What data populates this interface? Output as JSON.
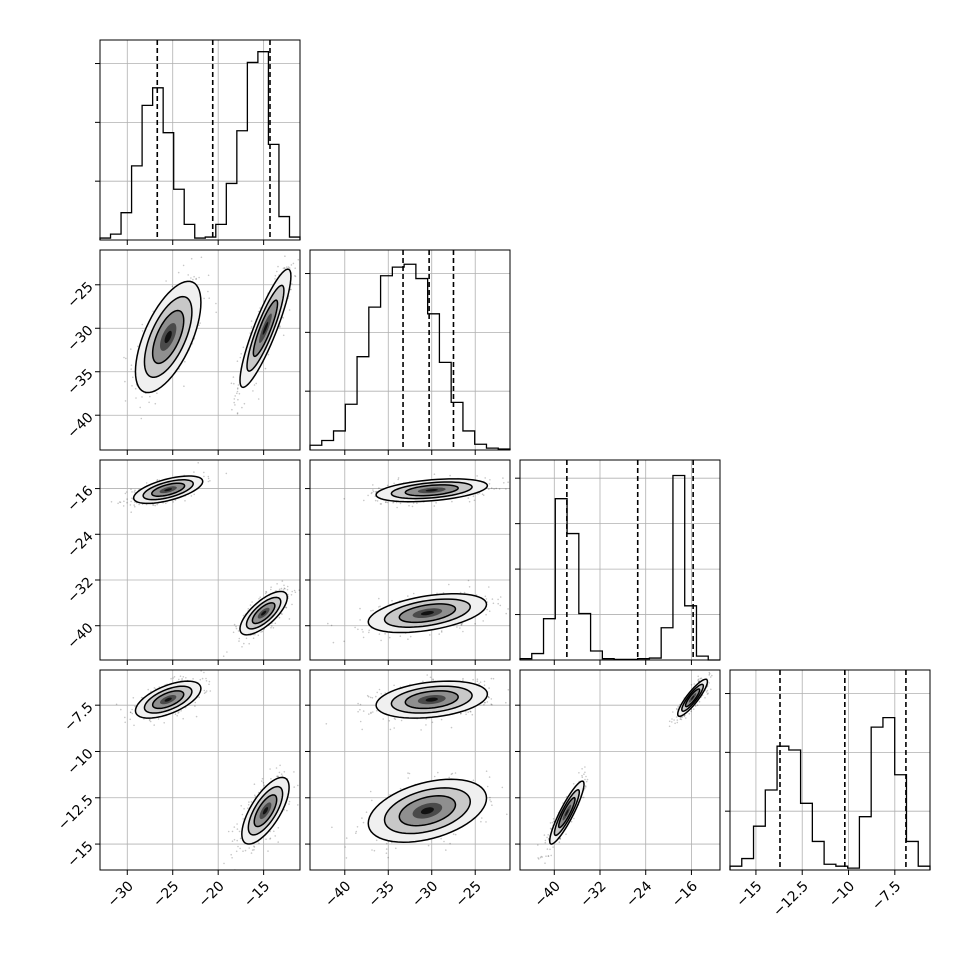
{
  "chart_data": {
    "type": "scatter",
    "title": "",
    "params": [
      {
        "range": [
          -33,
          -11
        ],
        "ticks": [
          -30,
          -25,
          -20,
          -15
        ],
        "quantiles": [
          -26.7,
          -20.6,
          -14.3
        ],
        "hist": [
          0.2,
          0.6,
          2.8,
          7.6,
          13.8,
          15.6,
          11.0,
          5.2,
          1.6,
          0.2,
          0.3,
          1.6,
          5.8,
          11.2,
          18.2,
          19.3,
          9.8,
          2.4,
          0.3
        ],
        "ymax": 20.5,
        "ygrid": 3
      },
      {
        "range": [
          -44,
          -21
        ],
        "ticks": [
          -40,
          -35,
          -30,
          -25
        ],
        "quantiles": [
          -33.3,
          -30.3,
          -27.5
        ],
        "hist": [
          0.5,
          1.0,
          2.0,
          4.8,
          9.8,
          15.0,
          18.3,
          19.2,
          19.5,
          18.0,
          14.3,
          9.2,
          5.0,
          2.0,
          0.6,
          0.2,
          0.1
        ],
        "ymax": 21,
        "ygrid": 3
      },
      {
        "range": [
          -46,
          -11
        ],
        "ticks": [
          -40,
          -32,
          -24,
          -16
        ],
        "quantiles": [
          -37.8,
          -25.4,
          -15.7
        ],
        "hist": [
          0.1,
          0.5,
          3.2,
          12.5,
          9.8,
          3.6,
          0.7,
          0.1,
          0.05,
          0.05,
          0.1,
          0.15,
          2.5,
          14.3,
          4.2,
          0.3,
          0
        ],
        "ymax": 15.5,
        "ygrid": 4
      },
      {
        "range": [
          -16.4,
          -5.6
        ],
        "ticks": [
          -15.0,
          -12.5,
          -10.0,
          -7.5
        ],
        "quantiles": [
          -13.7,
          -10.2,
          -6.9
        ],
        "hist": [
          0.2,
          0.6,
          2.3,
          4.2,
          6.5,
          6.3,
          3.5,
          1.5,
          0.3,
          0.2,
          0.1,
          2.8,
          7.5,
          8.0,
          5.0,
          1.5,
          0.2
        ],
        "ymax": 10.5,
        "ygrid": 3
      }
    ],
    "pairs": [
      {
        "row": 1,
        "col": 0,
        "clusters": [
          {
            "mx": -25.5,
            "my": -31,
            "sx": 1.8,
            "sy": 3.2,
            "rho": 0.62
          },
          {
            "mx": -14.8,
            "my": -30,
            "sx": 1.4,
            "sy": 3.4,
            "rho": 0.88
          }
        ]
      },
      {
        "row": 2,
        "col": 0,
        "clusters": [
          {
            "mx": -25.5,
            "my": -16.2,
            "sx": 1.9,
            "sy": 1.2,
            "rho": 0.6
          },
          {
            "mx": -15,
            "my": -37.8,
            "sx": 1.3,
            "sy": 1.9,
            "rho": 0.72
          }
        ]
      },
      {
        "row": 2,
        "col": 1,
        "clusters": [
          {
            "mx": -30,
            "my": -16.3,
            "sx": 3.2,
            "sy": 1.0,
            "rho": 0.4
          },
          {
            "mx": -30.5,
            "my": -37.8,
            "sx": 3.4,
            "sy": 1.7,
            "rho": 0.45
          }
        ]
      },
      {
        "row": 3,
        "col": 0,
        "clusters": [
          {
            "mx": -25.5,
            "my": -7.2,
            "sx": 1.8,
            "sy": 0.5,
            "rho": 0.6
          },
          {
            "mx": -14.8,
            "my": -13.2,
            "sx": 1.3,
            "sy": 0.9,
            "rho": 0.7
          }
        ]
      },
      {
        "row": 3,
        "col": 1,
        "clusters": [
          {
            "mx": -30,
            "my": -7.2,
            "sx": 3.2,
            "sy": 0.5,
            "rho": 0.3
          },
          {
            "mx": -30.5,
            "my": -13.2,
            "sx": 3.4,
            "sy": 0.85,
            "rho": 0.4
          }
        ]
      },
      {
        "row": 3,
        "col": 2,
        "clusters": [
          {
            "mx": -15.8,
            "my": -7.1,
            "sx": 1.3,
            "sy": 0.5,
            "rho": 0.88
          },
          {
            "mx": -37.8,
            "my": -13.3,
            "sx": 1.5,
            "sy": 0.85,
            "rho": 0.9
          }
        ]
      }
    ],
    "grid": true
  }
}
